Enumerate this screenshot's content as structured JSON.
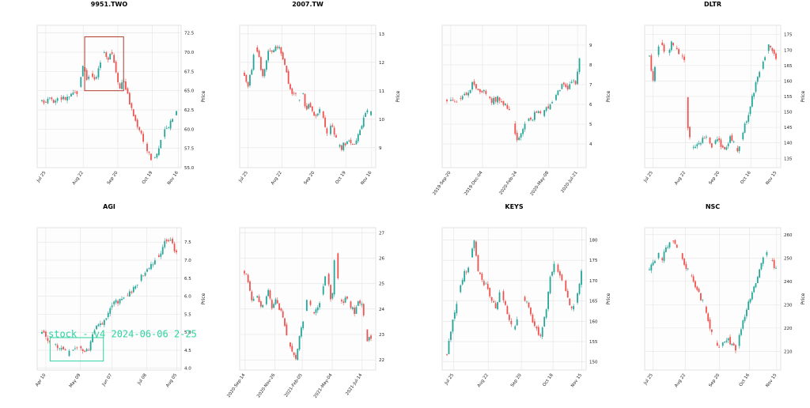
{
  "colors": {
    "up": "#26a69a",
    "down": "#ef5350",
    "grid": "#e4e4e4",
    "frame": "#d0d0d0",
    "box": "#b03a2e",
    "watermark": "#2ed3a0"
  },
  "chart_data": [
    {
      "type": "candlestick",
      "title": "9951.TWO",
      "ylabel": "Price",
      "ylim": [
        55.0,
        73.5
      ],
      "yticks": [
        "55.0",
        "57.5",
        "60.0",
        "62.5",
        "65.0",
        "67.5",
        "70.0",
        "72.5"
      ],
      "ytick_values": [
        55,
        57.5,
        60,
        62.5,
        65,
        67.5,
        70,
        72.5
      ],
      "xticks": [
        "Jul 25",
        "Aug 22",
        "Sep 20",
        "Oct 19",
        "Nov 16"
      ],
      "xtick_pos": [
        0.06,
        0.32,
        0.56,
        0.8,
        0.98
      ],
      "series": [
        63.5,
        63.8,
        64.5,
        63.6,
        64.2,
        64.0,
        64.0,
        64.3,
        64.6,
        65.0,
        68.5,
        66.5,
        67.5,
        66.5,
        68.0,
        70.0,
        69.0,
        70.5,
        68.0,
        65.5,
        66.5,
        64.5,
        62.5,
        61.0,
        60.0,
        58.5,
        57.0,
        56.0,
        56.5,
        58.0,
        59.5,
        60.5,
        61.5,
        62.5
      ],
      "annotation_box": [
        0.33,
        0.6,
        65.0,
        72.0
      ]
    },
    {
      "type": "candlestick",
      "title": "2007.TW",
      "ylabel": "Price",
      "ylim": [
        8.3,
        13.3
      ],
      "yticks": [
        "9",
        "10",
        "11",
        "12",
        "13"
      ],
      "ytick_values": [
        9,
        10,
        11,
        12,
        13
      ],
      "xticks": [
        "Jul 25",
        "Aug 22",
        "Sep 20",
        "Oct 19",
        "Nov 16"
      ],
      "xtick_pos": [
        0.06,
        0.31,
        0.55,
        0.78,
        0.97
      ],
      "series": [
        11.6,
        11.2,
        11.8,
        12.6,
        12.2,
        11.5,
        12.1,
        12.5,
        12.3,
        12.6,
        12.4,
        12.0,
        11.4,
        11.0,
        10.9,
        10.6,
        11.0,
        10.3,
        10.6,
        10.2,
        10.0,
        10.4,
        9.9,
        9.4,
        9.8,
        9.5,
        9.1,
        9.0,
        9.2,
        9.3,
        9.1,
        9.3,
        9.6,
        10.0,
        10.3,
        10.2
      ]
    },
    {
      "type": "candlestick",
      "title": "",
      "ylabel": "Price",
      "ylim": [
        2.8,
        10.0
      ],
      "yticks": [
        "4",
        "5",
        "6",
        "7",
        "8",
        "9"
      ],
      "ytick_values": [
        4,
        5,
        6,
        7,
        8,
        9
      ],
      "xticks": [
        "2019-Sep-20",
        "2019-Dec-04",
        "2020-Feb-24",
        "2020-May-08",
        "2020-Jul-21"
      ],
      "xtick_pos": [
        0.06,
        0.28,
        0.52,
        0.74,
        0.94
      ],
      "series": [
        6.2,
        6.3,
        6.2,
        6.3,
        6.5,
        7.0,
        6.9,
        6.7,
        6.5,
        6.2,
        6.3,
        6.1,
        6.0,
        5.3,
        4.0,
        4.6,
        5.1,
        5.3,
        5.6,
        5.4,
        5.8,
        6.0,
        6.5,
        7.0,
        6.8,
        7.2,
        7.1,
        9.0
      ]
    },
    {
      "type": "candlestick",
      "title": "DLTR",
      "ylabel": "Price",
      "ylim": [
        132,
        178
      ],
      "yticks": [
        "135",
        "140",
        "145",
        "150",
        "155",
        "160",
        "165",
        "170",
        "175"
      ],
      "ytick_values": [
        135,
        140,
        145,
        150,
        155,
        160,
        165,
        170,
        175
      ],
      "xticks": [
        "Jul 25",
        "Aug 22",
        "Sep 20",
        "Oct 16",
        "Nov 15"
      ],
      "xtick_pos": [
        0.06,
        0.3,
        0.55,
        0.78,
        0.97
      ],
      "series": [
        168,
        160,
        170,
        172,
        170,
        169,
        173,
        170,
        169,
        168,
        145,
        139,
        138,
        140,
        141,
        142,
        139,
        140,
        141,
        138,
        139,
        142,
        140,
        138,
        142,
        146,
        150,
        156,
        160,
        164,
        168,
        172,
        170,
        168
      ]
    },
    {
      "type": "candlestick",
      "title": "AGI",
      "ylabel": "Price",
      "ylim": [
        3.95,
        7.9
      ],
      "yticks": [
        "4.0",
        "4.5",
        "5.0",
        "5.5",
        "6.0",
        "6.5",
        "7.0",
        "7.5"
      ],
      "ytick_values": [
        4,
        4.5,
        5,
        5.5,
        6,
        6.5,
        7,
        7.5
      ],
      "xticks": [
        "Apr 10",
        "May 09",
        "Jun 07",
        "Jul 08",
        "Aug 05"
      ],
      "xtick_pos": [
        0.06,
        0.3,
        0.52,
        0.76,
        0.97
      ],
      "series": [
        4.95,
        4.85,
        4.7,
        4.6,
        4.5,
        4.4,
        4.55,
        4.6,
        4.45,
        4.5,
        5.0,
        5.2,
        5.3,
        5.6,
        5.8,
        5.9,
        6.0,
        6.1,
        6.3,
        6.5,
        6.6,
        6.8,
        7.0,
        7.2,
        7.6,
        7.5,
        7.2
      ],
      "annotation_box": [
        0.09,
        0.46,
        4.2,
        4.85
      ],
      "watermark": "stock - v4 2024-06-06 2-25"
    },
    {
      "type": "candlestick",
      "title": "",
      "ylabel": "",
      "ylim": [
        21.6,
        27.2
      ],
      "yticks": [
        "22",
        "23",
        "24",
        "25",
        "26",
        "27"
      ],
      "ytick_values": [
        22,
        23,
        24,
        25,
        26,
        27
      ],
      "xticks": [
        "2020-Sep-14",
        "2020-Nov-26",
        "2021-Feb-05",
        "2021-May-04",
        "2021-Jul-14"
      ],
      "xtick_pos": [
        0.04,
        0.26,
        0.46,
        0.68,
        0.9
      ],
      "series": [
        25.5,
        25.0,
        24.3,
        24.5,
        24.2,
        24.0,
        24.8,
        24.1,
        24.4,
        24.0,
        23.5,
        22.8,
        22.3,
        22.0,
        23.0,
        23.6,
        24.5,
        24.0,
        23.9,
        24.2,
        25.0,
        25.5,
        24.0,
        26.5,
        24.5,
        24.2,
        24.5,
        24.0,
        23.9,
        24.3,
        24.0,
        22.8,
        22.9
      ]
    },
    {
      "type": "candlestick",
      "title": "KEYS",
      "ylabel": "Price",
      "ylim": [
        148,
        183
      ],
      "yticks": [
        "150",
        "155",
        "160",
        "165",
        "170",
        "175",
        "180"
      ],
      "ytick_values": [
        150,
        155,
        160,
        165,
        170,
        175,
        180
      ],
      "xticks": [
        "Jul 25",
        "Aug 22",
        "Sep 20",
        "Oct 18",
        "Nov 15"
      ],
      "xtick_pos": [
        0.08,
        0.32,
        0.55,
        0.77,
        0.97
      ],
      "series": [
        152,
        158,
        164,
        168,
        172,
        174,
        180,
        172,
        170,
        168,
        165,
        163,
        168,
        164,
        160,
        158,
        162,
        166,
        164,
        160,
        158,
        156,
        162,
        170,
        175,
        172,
        170,
        166,
        162,
        166,
        172
      ]
    },
    {
      "type": "candlestick",
      "title": "NSC",
      "ylabel": "Price",
      "ylim": [
        202,
        263
      ],
      "yticks": [
        "210",
        "220",
        "230",
        "240",
        "250",
        "260"
      ],
      "ytick_values": [
        210,
        220,
        230,
        240,
        250,
        260
      ],
      "xticks": [
        "Jul 25",
        "Aug 22",
        "Sep 20",
        "Oct 16",
        "Nov 15"
      ],
      "xtick_pos": [
        0.06,
        0.3,
        0.55,
        0.77,
        0.97
      ],
      "series": [
        245,
        248,
        252,
        250,
        255,
        258,
        256,
        252,
        248,
        244,
        240,
        236,
        232,
        226,
        220,
        214,
        212,
        215,
        216,
        212,
        210,
        220,
        226,
        232,
        238,
        244,
        250,
        252,
        248,
        246
      ]
    }
  ]
}
